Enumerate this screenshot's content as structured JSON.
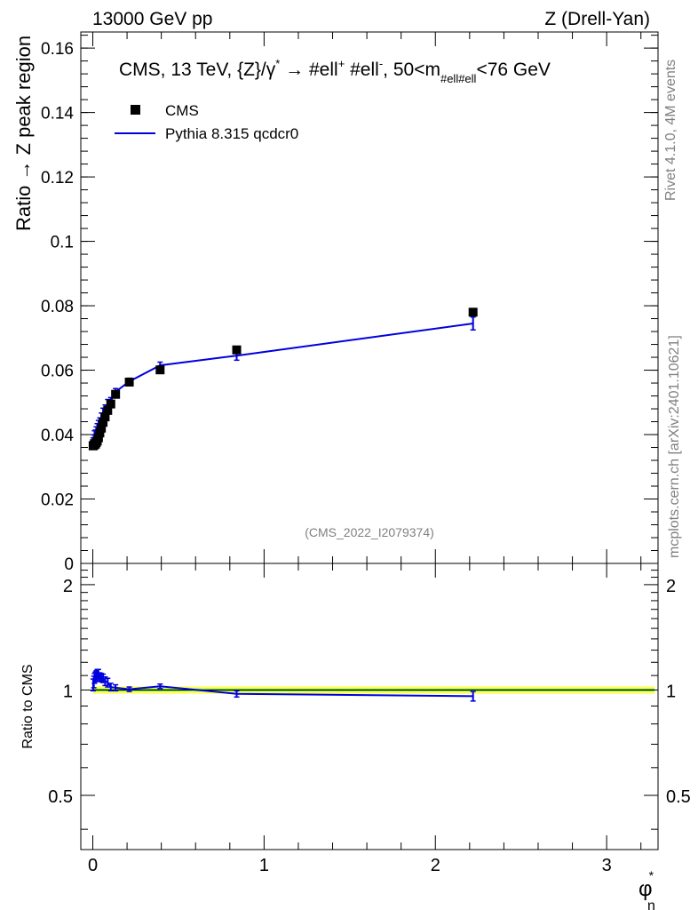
{
  "header": {
    "left": "13000 GeV pp",
    "right": "Z (Drell-Yan)"
  },
  "side_labels": {
    "rivet": "Rivet 4.1.0,  4M events",
    "mcplots": "mcplots.cern.ch [arXiv:2401.10621]"
  },
  "main_title_parts": {
    "prefix": "CMS, 13 TeV, {Z}/γ",
    "star": "*",
    "arrow": " → ",
    "ell1": "#ell",
    "plus": "+",
    "ell2": " #ell",
    "minus": "-",
    "mid": ", 50<m",
    "sub": "#ell#ell",
    "suffix": "<76 GeV"
  },
  "watermark": "(CMS_2022_I2079374)",
  "xlabel_parts": {
    "phi": "φ",
    "star": "*",
    "sub": "η"
  },
  "colors": {
    "data": "#000000",
    "mc": "#0000dd",
    "band_outer": "#ffff66",
    "band_inner": "#88ee44"
  },
  "chart_data": [
    {
      "type": "scatter",
      "ylabel": "Ratio → Z peak region",
      "ylim": [
        0,
        0.165
      ],
      "xlim": [
        -0.07,
        3.3
      ],
      "y_ticks": [
        0,
        0.02,
        0.04,
        0.06,
        0.08,
        0.1,
        0.12,
        0.14,
        0.16
      ],
      "y_tick_labels": [
        "0",
        "0.02",
        "0.04",
        "0.06",
        "0.08",
        "0.1",
        "0.12",
        "0.14",
        "0.16"
      ],
      "legend": {
        "position": "top-left",
        "entries": [
          "CMS",
          "Pythia 8.315 qcdcr0"
        ]
      },
      "series": [
        {
          "name": "CMS",
          "x": [
            0.002,
            0.006,
            0.01,
            0.015,
            0.02,
            0.026,
            0.033,
            0.041,
            0.05,
            0.06,
            0.072,
            0.087,
            0.105,
            0.133,
            0.213,
            0.393,
            0.84,
            2.22
          ],
          "y": [
            0.0365,
            0.0367,
            0.0372,
            0.037,
            0.0375,
            0.038,
            0.039,
            0.0405,
            0.042,
            0.0438,
            0.0455,
            0.0475,
            0.0495,
            0.0525,
            0.0563,
            0.0601,
            0.0663,
            0.078
          ]
        },
        {
          "name": "Pythia 8.315 qcdcr0",
          "x": [
            0.002,
            0.006,
            0.01,
            0.015,
            0.02,
            0.026,
            0.033,
            0.041,
            0.05,
            0.06,
            0.072,
            0.087,
            0.105,
            0.133,
            0.213,
            0.393,
            0.84,
            2.22
          ],
          "y": [
            0.0378,
            0.0387,
            0.04,
            0.0402,
            0.0412,
            0.0422,
            0.0432,
            0.044,
            0.0455,
            0.047,
            0.048,
            0.0497,
            0.0505,
            0.0533,
            0.0565,
            0.0615,
            0.0645,
            0.0745
          ],
          "yerr": [
            0.0012,
            0.0012,
            0.0012,
            0.0012,
            0.0012,
            0.0012,
            0.0012,
            0.0012,
            0.0012,
            0.0012,
            0.0012,
            0.0012,
            0.001,
            0.001,
            0.001,
            0.001,
            0.0014,
            0.002
          ]
        }
      ]
    },
    {
      "type": "line",
      "ylabel": "Ratio to CMS",
      "xlabel": "φ*η",
      "xlim": [
        -0.07,
        3.3
      ],
      "ylim": [
        0.35,
        2.3
      ],
      "log_y": true,
      "y_ticks": [
        0.5,
        1,
        2
      ],
      "y_tick_labels": [
        "0.5",
        "1",
        "2"
      ],
      "x_ticks": [
        0,
        1,
        2,
        3
      ],
      "x_tick_labels": [
        "0",
        "1",
        "2",
        "3"
      ],
      "band": {
        "center": 1.0,
        "inner": 0.01,
        "outer": 0.025
      },
      "series": [
        {
          "name": "Pythia 8.315 qcdcr0",
          "x": [
            0.002,
            0.006,
            0.01,
            0.015,
            0.02,
            0.026,
            0.033,
            0.041,
            0.05,
            0.06,
            0.072,
            0.087,
            0.105,
            0.133,
            0.213,
            0.393,
            0.84,
            2.22
          ],
          "y": [
            1.035,
            1.055,
            1.08,
            1.09,
            1.1,
            1.11,
            1.11,
            1.09,
            1.085,
            1.08,
            1.06,
            1.05,
            1.02,
            1.015,
            1.005,
            1.025,
            0.975,
            0.96
          ],
          "yerr": [
            0.04,
            0.04,
            0.035,
            0.035,
            0.035,
            0.035,
            0.035,
            0.03,
            0.03,
            0.03,
            0.03,
            0.03,
            0.025,
            0.02,
            0.015,
            0.015,
            0.02,
            0.03
          ]
        }
      ]
    }
  ]
}
